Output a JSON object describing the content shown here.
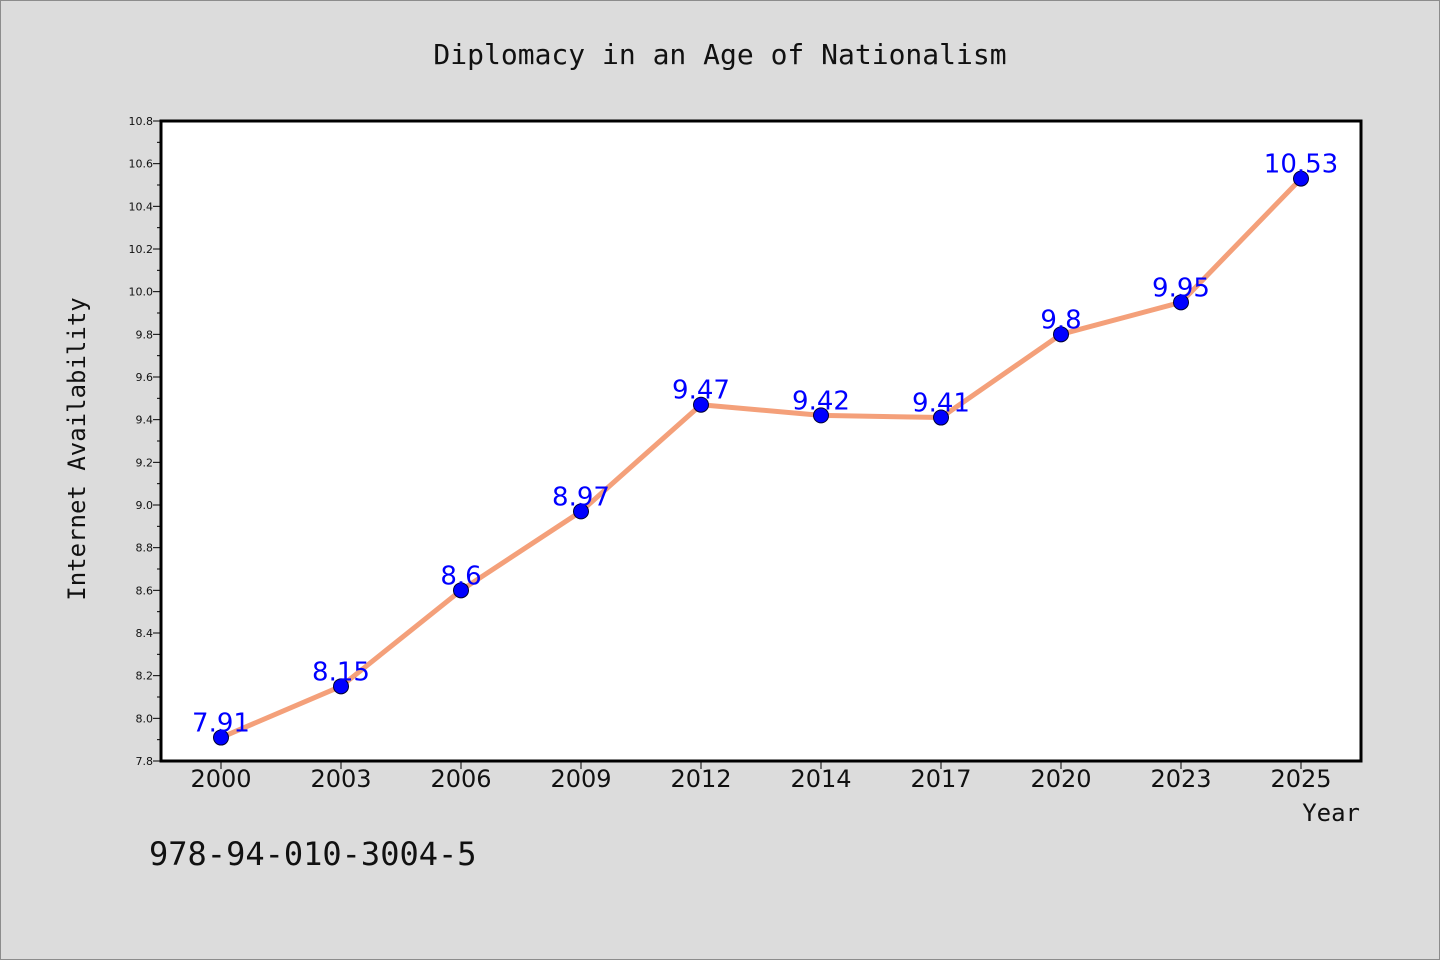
{
  "chart_data": {
    "type": "line",
    "title": "Diplomacy in an Age of Nationalism",
    "xlabel": "Year",
    "ylabel": "Internet Availability",
    "categories": [
      "2000",
      "2003",
      "2006",
      "2009",
      "2012",
      "2014",
      "2017",
      "2020",
      "2023",
      "2025"
    ],
    "series": [
      {
        "values": [
          7.91,
          8.15,
          8.6,
          8.97,
          9.47,
          9.42,
          9.41,
          9.8,
          9.95,
          10.53
        ],
        "labels": [
          "7.91",
          "8.15",
          "8.6",
          "8.97",
          "9.47",
          "9.42",
          "9.41",
          "9.8",
          "9.95",
          "10.53"
        ]
      }
    ],
    "ylim": [
      7.8,
      10.8
    ],
    "yticks": [
      "7.8",
      "8.0",
      "8.2",
      "8.4",
      "8.6",
      "8.8",
      "9.0",
      "9.2",
      "9.4",
      "9.6",
      "9.8",
      "10.0",
      "10.2",
      "10.4",
      "10.6",
      "10.8"
    ],
    "grid": false,
    "legend": "none",
    "colors": {
      "line": "#f4a07a",
      "marker": "#0000ff",
      "point_label": "#0000ff",
      "plot_background": "#ffffff",
      "figure_background": "#dcdcdc"
    }
  },
  "footer": {
    "isbn": "978-94-010-3004-5"
  }
}
